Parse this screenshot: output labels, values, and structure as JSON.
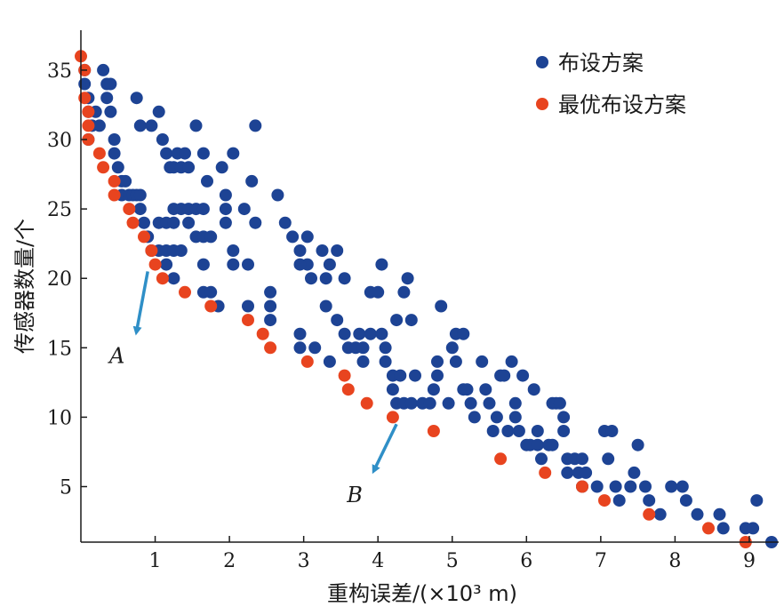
{
  "chart_data": {
    "type": "scatter",
    "xlabel": "重构误差/(×10³ m)",
    "ylabel": "传感器数量/个",
    "xlim": [
      0,
      9.3
    ],
    "ylim": [
      1,
      37.5
    ],
    "x_ticks": [
      "1",
      "2",
      "3",
      "4",
      "5",
      "6",
      "7",
      "8",
      "9"
    ],
    "y_ticks": [
      "5",
      "10",
      "15",
      "20",
      "25",
      "30",
      "35"
    ],
    "colors": {
      "all": "#1d4394",
      "optimal": "#e8441f",
      "arrow": "#2f8fc7",
      "axis": "#1a1a1a"
    },
    "legend": [
      {
        "name": "布设方案",
        "color": "#1d4394"
      },
      {
        "name": "最优布设方案",
        "color": "#e8441f"
      }
    ],
    "annotations": [
      {
        "label": "A",
        "from": [
          0.9,
          20.5
        ],
        "to": [
          0.75,
          16.2
        ]
      },
      {
        "label": "B",
        "from": [
          4.25,
          9.5
        ],
        "to": [
          3.95,
          6.2
        ]
      }
    ],
    "series": [
      {
        "name": "布设方案",
        "points": [
          [
            0.05,
            35
          ],
          [
            0.05,
            34
          ],
          [
            0.1,
            33
          ],
          [
            0.1,
            32
          ],
          [
            0.15,
            31
          ],
          [
            0.1,
            30
          ],
          [
            0.2,
            32
          ],
          [
            0.25,
            31
          ],
          [
            0.3,
            35
          ],
          [
            0.35,
            34
          ],
          [
            0.4,
            34
          ],
          [
            0.35,
            33
          ],
          [
            0.4,
            32
          ],
          [
            0.45,
            30
          ],
          [
            0.45,
            29
          ],
          [
            0.5,
            28
          ],
          [
            0.55,
            27
          ],
          [
            0.55,
            26
          ],
          [
            0.6,
            27
          ],
          [
            0.65,
            26
          ],
          [
            0.7,
            26
          ],
          [
            0.75,
            26
          ],
          [
            0.8,
            26
          ],
          [
            0.8,
            25
          ],
          [
            0.85,
            24
          ],
          [
            0.9,
            23
          ],
          [
            0.95,
            22
          ],
          [
            0.75,
            33
          ],
          [
            0.8,
            31
          ],
          [
            0.95,
            31
          ],
          [
            1.05,
            32
          ],
          [
            1.1,
            30
          ],
          [
            1.15,
            29
          ],
          [
            1.2,
            28
          ],
          [
            1.25,
            28
          ],
          [
            1.3,
            29
          ],
          [
            1.35,
            28
          ],
          [
            1.4,
            29
          ],
          [
            1.45,
            28
          ],
          [
            1.55,
            31
          ],
          [
            1.65,
            29
          ],
          [
            1.05,
            24
          ],
          [
            1.15,
            24
          ],
          [
            1.25,
            25
          ],
          [
            1.35,
            25
          ],
          [
            1.45,
            25
          ],
          [
            1.55,
            25
          ],
          [
            1.65,
            25
          ],
          [
            1.25,
            24
          ],
          [
            1.45,
            24
          ],
          [
            1.55,
            23
          ],
          [
            1.65,
            23
          ],
          [
            1.75,
            23
          ],
          [
            1.05,
            22
          ],
          [
            1.15,
            22
          ],
          [
            1.25,
            22
          ],
          [
            1.35,
            22
          ],
          [
            1.15,
            21
          ],
          [
            1.25,
            20
          ],
          [
            1.65,
            21
          ],
          [
            1.65,
            19
          ],
          [
            1.75,
            19
          ],
          [
            1.85,
            18
          ],
          [
            1.7,
            27
          ],
          [
            1.9,
            28
          ],
          [
            2.05,
            29
          ],
          [
            1.95,
            26
          ],
          [
            1.95,
            25
          ],
          [
            2.2,
            25
          ],
          [
            2.35,
            24
          ],
          [
            2.3,
            27
          ],
          [
            2.35,
            31
          ],
          [
            1.95,
            24
          ],
          [
            2.05,
            22
          ],
          [
            2.05,
            21
          ],
          [
            2.25,
            21
          ],
          [
            2.25,
            18
          ],
          [
            2.55,
            19
          ],
          [
            2.55,
            18
          ],
          [
            2.55,
            17
          ],
          [
            2.65,
            26
          ],
          [
            2.75,
            24
          ],
          [
            2.85,
            23
          ],
          [
            2.95,
            22
          ],
          [
            3.05,
            23
          ],
          [
            3.05,
            21
          ],
          [
            2.95,
            21
          ],
          [
            3.1,
            20
          ],
          [
            3.25,
            22
          ],
          [
            3.3,
            20
          ],
          [
            2.95,
            16
          ],
          [
            2.95,
            15
          ],
          [
            3.15,
            15
          ],
          [
            3.35,
            14
          ],
          [
            3.3,
            18
          ],
          [
            3.35,
            21
          ],
          [
            3.45,
            22
          ],
          [
            3.55,
            20
          ],
          [
            3.45,
            17
          ],
          [
            3.55,
            16
          ],
          [
            3.6,
            15
          ],
          [
            3.7,
            15
          ],
          [
            3.75,
            16
          ],
          [
            3.8,
            15
          ],
          [
            3.8,
            14
          ],
          [
            3.9,
            16
          ],
          [
            3.9,
            19
          ],
          [
            4.0,
            19
          ],
          [
            4.05,
            21
          ],
          [
            4.05,
            16
          ],
          [
            4.1,
            15
          ],
          [
            4.1,
            14
          ],
          [
            4.2,
            13
          ],
          [
            4.2,
            12
          ],
          [
            4.25,
            17
          ],
          [
            4.3,
            13
          ],
          [
            4.35,
            19
          ],
          [
            4.4,
            20
          ],
          [
            4.45,
            17
          ],
          [
            4.25,
            11
          ],
          [
            4.35,
            11
          ],
          [
            4.45,
            11
          ],
          [
            4.5,
            13
          ],
          [
            4.6,
            11
          ],
          [
            4.7,
            11
          ],
          [
            4.75,
            12
          ],
          [
            4.8,
            14
          ],
          [
            4.8,
            13
          ],
          [
            4.85,
            18
          ],
          [
            4.95,
            11
          ],
          [
            5.0,
            15
          ],
          [
            5.05,
            14
          ],
          [
            5.05,
            16
          ],
          [
            5.15,
            16
          ],
          [
            5.15,
            12
          ],
          [
            5.2,
            12
          ],
          [
            5.25,
            11
          ],
          [
            5.3,
            10
          ],
          [
            5.4,
            14
          ],
          [
            5.45,
            12
          ],
          [
            5.5,
            11
          ],
          [
            5.55,
            9
          ],
          [
            5.6,
            10
          ],
          [
            5.65,
            13
          ],
          [
            5.7,
            13
          ],
          [
            5.8,
            14
          ],
          [
            5.75,
            9
          ],
          [
            5.85,
            11
          ],
          [
            5.85,
            10
          ],
          [
            5.9,
            9
          ],
          [
            5.95,
            13
          ],
          [
            6.0,
            8
          ],
          [
            6.05,
            8
          ],
          [
            6.1,
            12
          ],
          [
            6.15,
            9
          ],
          [
            6.15,
            8
          ],
          [
            6.2,
            7
          ],
          [
            6.3,
            8
          ],
          [
            6.35,
            8
          ],
          [
            6.35,
            11
          ],
          [
            6.4,
            11
          ],
          [
            6.45,
            11
          ],
          [
            6.5,
            10
          ],
          [
            6.5,
            9
          ],
          [
            6.55,
            7
          ],
          [
            6.55,
            6
          ],
          [
            6.65,
            7
          ],
          [
            6.7,
            6
          ],
          [
            6.75,
            7
          ],
          [
            6.75,
            5
          ],
          [
            6.8,
            6
          ],
          [
            6.95,
            5
          ],
          [
            7.05,
            9
          ],
          [
            7.1,
            7
          ],
          [
            7.15,
            9
          ],
          [
            7.2,
            5
          ],
          [
            7.25,
            4
          ],
          [
            7.4,
            5
          ],
          [
            7.45,
            6
          ],
          [
            7.5,
            8
          ],
          [
            7.6,
            5
          ],
          [
            7.65,
            4
          ],
          [
            7.8,
            3
          ],
          [
            7.95,
            5
          ],
          [
            8.1,
            5
          ],
          [
            8.15,
            4
          ],
          [
            8.3,
            3
          ],
          [
            8.6,
            3
          ],
          [
            8.65,
            2
          ],
          [
            8.95,
            2
          ],
          [
            9.05,
            2
          ],
          [
            9.1,
            4
          ],
          [
            9.3,
            1
          ]
        ]
      },
      {
        "name": "最优布设方案",
        "points": [
          [
            0.0,
            36
          ],
          [
            0.05,
            35
          ],
          [
            0.05,
            33
          ],
          [
            0.1,
            32
          ],
          [
            0.1,
            31
          ],
          [
            0.1,
            30
          ],
          [
            0.25,
            29
          ],
          [
            0.3,
            28
          ],
          [
            0.45,
            27
          ],
          [
            0.45,
            26
          ],
          [
            0.65,
            25
          ],
          [
            0.7,
            24
          ],
          [
            0.85,
            23
          ],
          [
            0.95,
            22
          ],
          [
            1.0,
            21
          ],
          [
            1.1,
            20
          ],
          [
            1.4,
            19
          ],
          [
            1.75,
            18
          ],
          [
            2.25,
            17
          ],
          [
            2.45,
            16
          ],
          [
            2.55,
            15
          ],
          [
            3.05,
            14
          ],
          [
            3.55,
            13
          ],
          [
            3.6,
            12
          ],
          [
            3.85,
            11
          ],
          [
            4.2,
            10
          ],
          [
            4.75,
            9
          ],
          [
            5.65,
            7
          ],
          [
            6.25,
            6
          ],
          [
            6.75,
            5
          ],
          [
            7.05,
            4
          ],
          [
            7.65,
            3
          ],
          [
            8.45,
            2
          ],
          [
            8.95,
            1
          ]
        ]
      }
    ]
  }
}
